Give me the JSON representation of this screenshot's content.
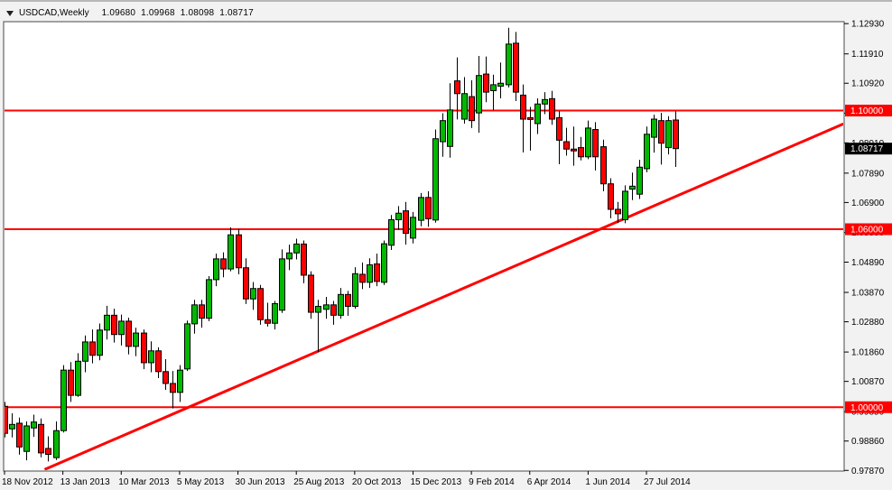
{
  "title_bar": {
    "symbol_period": "USDCAD,Weekly",
    "open": "1.09680",
    "high": "1.09968",
    "low": "1.08098",
    "close": "1.08717"
  },
  "chart_data": {
    "type": "candlestick",
    "title": "USDCAD,Weekly",
    "symbol": "USDCAD",
    "timeframe": "Weekly",
    "legend_position": "none",
    "grid": false,
    "x_axis": {
      "labels": [
        "18 Nov 2012",
        "13 Jan 2013",
        "10 Mar 2013",
        "5 May 2013",
        "30 Jun 2013",
        "25 Aug 2013",
        "20 Oct 2013",
        "15 Dec 2013",
        "9 Feb 2014",
        "6 Apr 2014",
        "1 Jun 2014",
        "27 Jul 2014"
      ],
      "label_week_indices": [
        0,
        8,
        16,
        24,
        32,
        40,
        48,
        56,
        64,
        72,
        80,
        88
      ]
    },
    "y_axis": {
      "ticks": [
        "1.12930",
        "1.11910",
        "1.10920",
        "1.09910",
        "1.08910",
        "1.07890",
        "1.06900",
        "1.05890",
        "1.04890",
        "1.03870",
        "1.02880",
        "1.01860",
        "1.00870",
        "0.99850",
        "0.98860",
        "0.97870"
      ],
      "range": [
        0.97848,
        1.12996
      ]
    },
    "price_badges": [
      {
        "label": "1.10000",
        "value": 1.1,
        "bg": "#ff0000",
        "fg": "#ffffff",
        "kind": "line-level"
      },
      {
        "label": "1.08717",
        "value": 1.08717,
        "bg": "#000000",
        "fg": "#ffffff",
        "kind": "current-price"
      },
      {
        "label": "1.06000",
        "value": 1.06,
        "bg": "#ff0000",
        "fg": "#ffffff",
        "kind": "line-level"
      },
      {
        "label": "1.00000",
        "value": 1.0,
        "bg": "#ff0000",
        "fg": "#ffffff",
        "kind": "line-level"
      }
    ],
    "horizontal_lines": [
      {
        "value": 1.1,
        "color": "#ff0000",
        "width": 2
      },
      {
        "value": 1.06,
        "color": "#ff0000",
        "width": 2
      },
      {
        "value": 1.0,
        "color": "#ff0000",
        "width": 2
      }
    ],
    "trend_line": {
      "week1": 5.5,
      "price1": 0.979,
      "week2": 115.0,
      "price2": 1.0955,
      "color": "#ff0000",
      "width": 3
    },
    "colors": {
      "bull_body": "#00b800",
      "bear_body": "#ff0000",
      "outline": "#000000",
      "plot_bg": "#ffffff",
      "axis_text": "#000000",
      "plot_border": "#4a4a4a",
      "window_bg": "#f2f2f2"
    },
    "candles": [
      [
        1.0003,
        1.0018,
        0.9898,
        0.9912
      ],
      [
        0.9927,
        0.998,
        0.9898,
        0.9942
      ],
      [
        0.9946,
        0.9965,
        0.984,
        0.9866
      ],
      [
        0.9851,
        0.9952,
        0.9821,
        0.9937
      ],
      [
        0.993,
        0.9975,
        0.99,
        0.995
      ],
      [
        0.9942,
        0.9962,
        0.9831,
        0.9846
      ],
      [
        0.9861,
        0.9902,
        0.9817,
        0.9841
      ],
      [
        0.983,
        0.9952,
        0.9822,
        0.9921
      ],
      [
        0.9921,
        1.0142,
        0.9915,
        1.0125
      ],
      [
        1.0125,
        1.0152,
        1.0018,
        1.004
      ],
      [
        1.004,
        1.0182,
        1.0035,
        1.0155
      ],
      [
        1.0155,
        1.0242,
        1.0118,
        1.022
      ],
      [
        1.022,
        1.0262,
        1.0148,
        1.0175
      ],
      [
        1.0175,
        1.0282,
        1.0158,
        1.026
      ],
      [
        1.026,
        1.0342,
        1.0228,
        1.031
      ],
      [
        1.031,
        1.0332,
        1.0218,
        1.0245
      ],
      [
        1.0245,
        1.0312,
        1.0208,
        1.029
      ],
      [
        1.029,
        1.0302,
        1.0178,
        1.0205
      ],
      [
        1.0205,
        1.0268,
        1.0172,
        1.025
      ],
      [
        1.025,
        1.0262,
        1.0128,
        1.015
      ],
      [
        1.015,
        1.0222,
        1.0118,
        1.019
      ],
      [
        1.019,
        1.0202,
        1.0098,
        1.012
      ],
      [
        1.012,
        1.0162,
        1.0058,
        1.008
      ],
      [
        1.008,
        1.0122,
        0.9996,
        1.005
      ],
      [
        1.005,
        1.0142,
        1.0018,
        1.0125
      ],
      [
        1.0129,
        1.0292,
        1.0122,
        1.0281
      ],
      [
        1.0281,
        1.0362,
        1.0248,
        1.0345
      ],
      [
        1.0345,
        1.0362,
        1.0268,
        1.03
      ],
      [
        1.03,
        1.0442,
        1.029,
        1.043
      ],
      [
        1.043,
        1.0518,
        1.0408,
        1.05
      ],
      [
        1.05,
        1.0522,
        1.0438,
        1.0466
      ],
      [
        1.0466,
        1.0606,
        1.0458,
        1.0581
      ],
      [
        1.0581,
        1.0601,
        1.0448,
        1.047
      ],
      [
        1.047,
        1.0502,
        1.0348,
        1.0365
      ],
      [
        1.0365,
        1.0422,
        1.0328,
        1.04
      ],
      [
        1.04,
        1.0412,
        1.0278,
        1.0295
      ],
      [
        1.0295,
        1.0352,
        1.0272,
        1.0283
      ],
      [
        1.0283,
        1.0358,
        1.0262,
        1.0349
      ],
      [
        1.0327,
        1.0532,
        1.0318,
        1.05
      ],
      [
        1.05,
        1.0548,
        1.0462,
        1.052
      ],
      [
        1.052,
        1.0568,
        1.0498,
        1.055
      ],
      [
        1.055,
        1.0562,
        1.0418,
        1.0445
      ],
      [
        1.0445,
        1.0458,
        1.0298,
        1.032
      ],
      [
        1.032,
        1.0362,
        1.0185,
        1.034
      ],
      [
        1.033,
        1.0372,
        1.0298,
        1.0345
      ],
      [
        1.0345,
        1.0358,
        1.0278,
        1.031
      ],
      [
        1.031,
        1.0402,
        1.0298,
        1.038
      ],
      [
        1.038,
        1.0392,
        1.0308,
        1.034
      ],
      [
        1.034,
        1.0472,
        1.0332,
        1.045
      ],
      [
        1.0448,
        1.0488,
        1.0398,
        1.0421
      ],
      [
        1.0421,
        1.0502,
        1.0402,
        1.048
      ],
      [
        1.0483,
        1.0518,
        1.0408,
        1.0424
      ],
      [
        1.0421,
        1.0562,
        1.0412,
        1.0551
      ],
      [
        1.0546,
        1.0648,
        1.053,
        1.0632
      ],
      [
        1.0632,
        1.0678,
        1.0598,
        1.0654
      ],
      [
        1.0662,
        1.0692,
        1.0548,
        1.0586
      ],
      [
        1.057,
        1.0658,
        1.0552,
        1.064
      ],
      [
        1.063,
        1.0722,
        1.061,
        1.0707
      ],
      [
        1.0707,
        1.0728,
        1.0608,
        1.0635
      ],
      [
        1.0631,
        1.0936,
        1.0622,
        1.0905
      ],
      [
        1.0895,
        1.0991,
        1.0844,
        1.0966
      ],
      [
        1.0879,
        1.1092,
        1.0841,
        1.1002
      ],
      [
        1.11,
        1.1179,
        1.097,
        1.1057
      ],
      [
        1.0971,
        1.1113,
        1.0956,
        1.1057
      ],
      [
        1.1047,
        1.1102,
        1.0941,
        1.0966
      ],
      [
        1.0992,
        1.1184,
        1.0925,
        1.1118
      ],
      [
        1.1123,
        1.1182,
        1.1028,
        1.1062
      ],
      [
        1.1067,
        1.1121,
        1.1002,
        1.1087
      ],
      [
        1.1082,
        1.1162,
        1.1041,
        1.1092
      ],
      [
        1.1087,
        1.1279,
        1.1078,
        1.1224
      ],
      [
        1.1227,
        1.1265,
        1.1032,
        1.1062
      ],
      [
        1.1052,
        1.1088,
        1.0859,
        1.0971
      ],
      [
        1.0976,
        1.1012,
        1.0865,
        1.097
      ],
      [
        1.0956,
        1.1041,
        1.0921,
        1.1022
      ],
      [
        1.1022,
        1.1062,
        1.0988,
        1.1037
      ],
      [
        1.104,
        1.1066,
        1.0952,
        1.0971
      ],
      [
        1.0976,
        1.0998,
        1.0819,
        1.09
      ],
      [
        1.0895,
        1.0942,
        1.0848,
        1.087
      ],
      [
        1.087,
        1.0946,
        1.0814,
        1.0866
      ],
      [
        1.0875,
        1.0911,
        1.0832,
        1.0844
      ],
      [
        1.0844,
        1.0966,
        1.0836,
        1.0941
      ],
      [
        1.0936,
        1.0961,
        1.0798,
        1.0844
      ],
      [
        1.0878,
        1.0902,
        1.0728,
        1.0753
      ],
      [
        1.0753,
        1.0772,
        1.0637,
        1.0667
      ],
      [
        1.0667,
        1.0692,
        1.0621,
        1.0652
      ],
      [
        1.0632,
        1.0748,
        1.062,
        1.0728
      ],
      [
        1.0735,
        1.0791,
        1.0698,
        1.0745
      ],
      [
        1.0718,
        1.0834,
        1.0702,
        1.0809
      ],
      [
        1.0804,
        1.0946,
        1.0792,
        1.092
      ],
      [
        1.091,
        1.0986,
        1.0858,
        1.0971
      ],
      [
        1.0966,
        1.0992,
        1.0818,
        1.089
      ],
      [
        1.0875,
        1.0981,
        1.0852,
        1.0966
      ],
      [
        1.0968,
        1.09968,
        1.08098,
        1.08717
      ]
    ]
  }
}
